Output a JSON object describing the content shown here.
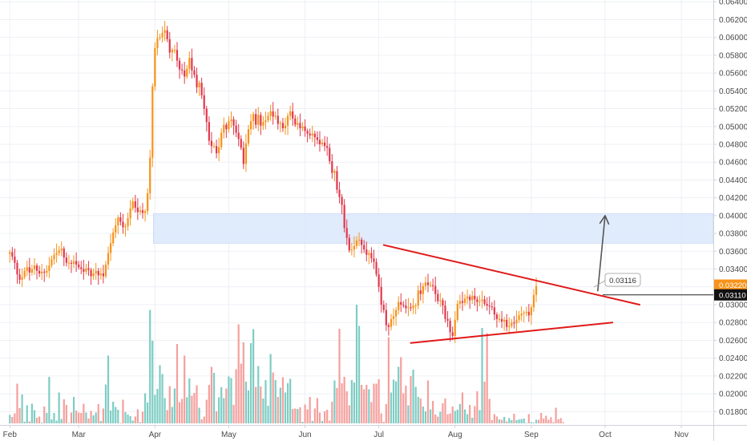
{
  "chart_data": {
    "type": "candlestick",
    "title": "",
    "xlabel": "",
    "ylabel": "",
    "ylim": [
      0.0165,
      0.0642
    ],
    "grid": true,
    "legend": "none",
    "y_ticks": [
      "0.01800",
      "0.02000",
      "0.02200",
      "0.02400",
      "0.02600",
      "0.02800",
      "0.03000",
      "0.03200",
      "0.03400",
      "0.03600",
      "0.03800",
      "0.04000",
      "0.04200",
      "0.04400",
      "0.04600",
      "0.04800",
      "0.05000",
      "0.05200",
      "0.05400",
      "0.05600",
      "0.05800",
      "0.06000",
      "0.06200",
      "0.06400"
    ],
    "x_ticks": [
      {
        "label": "Feb",
        "day": 0
      },
      {
        "label": "Mar",
        "day": 28
      },
      {
        "label": "Apr",
        "day": 59
      },
      {
        "label": "May",
        "day": 89
      },
      {
        "label": "Jun",
        "day": 120
      },
      {
        "label": "Jul",
        "day": 150
      },
      {
        "label": "Aug",
        "day": 181
      },
      {
        "label": "Sep",
        "day": 212
      },
      {
        "label": "Oct",
        "day": 242
      },
      {
        "label": "Nov",
        "day": 273
      }
    ],
    "x_day_range": [
      -4,
      286
    ],
    "price_tags": [
      {
        "label": "0.03220",
        "value": 0.0322,
        "color": "#f7931a"
      },
      {
        "label": "0.03110",
        "value": 0.0311,
        "color": "#111111"
      }
    ],
    "annotation": {
      "label": "0.03116",
      "day": 242,
      "value": 0.0327
    },
    "close_series": [
      0.0359,
      0.0354,
      0.0347,
      0.0334,
      0.0328,
      0.0331,
      0.0338,
      0.0342,
      0.0336,
      0.034,
      0.0344,
      0.0338,
      0.0335,
      0.0337,
      0.0336,
      0.0338,
      0.0344,
      0.0351,
      0.0356,
      0.0358,
      0.0361,
      0.0363,
      0.0353,
      0.0347,
      0.0347,
      0.0346,
      0.0349,
      0.0345,
      0.0342,
      0.034,
      0.0337,
      0.0341,
      0.0339,
      0.0332,
      0.0335,
      0.0338,
      0.0333,
      0.0335,
      0.0332,
      0.0345,
      0.0358,
      0.0369,
      0.0381,
      0.0389,
      0.0398,
      0.0393,
      0.0387,
      0.0388,
      0.0397,
      0.0408,
      0.0416,
      0.0409,
      0.0404,
      0.0406,
      0.0403,
      0.0405,
      0.0425,
      0.0465,
      0.0545,
      0.0588,
      0.0599,
      0.06,
      0.0605,
      0.0608,
      0.0598,
      0.0583,
      0.0586,
      0.0586,
      0.0574,
      0.0564,
      0.0563,
      0.0556,
      0.0565,
      0.0577,
      0.0563,
      0.0558,
      0.0544,
      0.0549,
      0.0535,
      0.052,
      0.0505,
      0.0484,
      0.0478,
      0.0478,
      0.047,
      0.0477,
      0.0493,
      0.0502,
      0.0497,
      0.0506,
      0.0508,
      0.0501,
      0.0493,
      0.0486,
      0.0476,
      0.0458,
      0.0481,
      0.0497,
      0.0506,
      0.0514,
      0.0502,
      0.0513,
      0.0501,
      0.0505,
      0.0507,
      0.0512,
      0.0517,
      0.0511,
      0.0512,
      0.0503,
      0.0504,
      0.0498,
      0.0501,
      0.0512,
      0.0517,
      0.0509,
      0.0502,
      0.0504,
      0.0498,
      0.05,
      0.0495,
      0.0492,
      0.049,
      0.0492,
      0.0488,
      0.0485,
      0.048,
      0.0482,
      0.0478,
      0.0476,
      0.0461,
      0.0448,
      0.045,
      0.0429,
      0.0421,
      0.0412,
      0.0386,
      0.0375,
      0.0361,
      0.0362,
      0.0366,
      0.0372,
      0.0373,
      0.0367,
      0.0362,
      0.0356,
      0.0358,
      0.0352,
      0.0348,
      0.0334,
      0.032,
      0.03,
      0.0294,
      0.0277,
      0.0275,
      0.0284,
      0.0287,
      0.0294,
      0.0303,
      0.03,
      0.0299,
      0.0296,
      0.0297,
      0.0296,
      0.0299,
      0.0299,
      0.0316,
      0.0312,
      0.0321,
      0.0325,
      0.0322,
      0.0322,
      0.0321,
      0.0312,
      0.0304,
      0.0305,
      0.0299,
      0.0284,
      0.0282,
      0.0269,
      0.0265,
      0.0283,
      0.0301,
      0.0304,
      0.0302,
      0.0307,
      0.0309,
      0.0305,
      0.031,
      0.0306,
      0.0303,
      0.0304,
      0.0306,
      0.0301,
      0.0299,
      0.0298,
      0.0297,
      0.0289,
      0.0284,
      0.0284,
      0.0281,
      0.0283,
      0.0275,
      0.0276,
      0.028,
      0.0279,
      0.0283,
      0.0288,
      0.029,
      0.0291,
      0.0292,
      0.0288,
      0.0297,
      0.0311,
      0.0321
    ],
    "volume_max": 0.3,
    "volume_series": [
      0.021,
      0.016,
      0.025,
      0.099,
      0.038,
      0.072,
      0.004,
      0.045,
      0.005,
      0.049,
      0.033,
      0.014,
      0.017,
      0.002,
      0.042,
      0.026,
      0.116,
      0.01,
      0.026,
      0.007,
      0.077,
      0.011,
      0.06,
      0.046,
      0.001,
      0.027,
      0.066,
      0.032,
      0.027,
      0.026,
      0.049,
      0.027,
      0.012,
      0.031,
      0.02,
      0.027,
      0.048,
      0.006,
      0.037,
      0.097,
      0.169,
      0.032,
      0.054,
      0.041,
      0.034,
      0.001,
      0.059,
      0.028,
      0.022,
      0.018,
      0.007,
      0.017,
      0.035,
      0.003,
      0.029,
      0.075,
      0.052,
      0.283,
      0.206,
      0.071,
      0.086,
      0.145,
      0.123,
      0.063,
      0.033,
      0.093,
      0.041,
      0.087,
      0.198,
      0.053,
      0.061,
      0.169,
      0.065,
      0.112,
      0.069,
      0.076,
      0.095,
      0.039,
      0.01,
      0.017,
      0.059,
      0.096,
      0.141,
      0.126,
      0.03,
      0.065,
      0.09,
      0.063,
      0.087,
      0.117,
      0.113,
      0.046,
      0.135,
      0.247,
      0.149,
      0.202,
      0.104,
      0.082,
      0.2,
      0.235,
      0.091,
      0.143,
      0.092,
      0.062,
      0.108,
      0.044,
      0.173,
      0.127,
      0.108,
      0.066,
      0.089,
      0.115,
      0.077,
      0.1,
      0.111,
      0.036,
      0.037,
      0.036,
      0.04,
      0.004,
      0.047,
      0.035,
      0.066,
      0.006,
      0.037,
      0.063,
      0.027,
      0.006,
      0.03,
      0.034,
      0.007,
      0.054,
      0.107,
      0.088,
      0.236,
      0.1,
      0.116,
      0.08,
      0.045,
      0.108,
      0.102,
      0.296,
      0.243,
      0.096,
      0.085,
      0.096,
      0.085,
      0.053,
      0.099,
      0.099,
      0.11,
      0.025,
      0.004,
      0.048,
      0.215,
      0.077,
      0.109,
      0.105,
      0.141,
      0.165,
      0.075,
      0.094,
      0.045,
      0.118,
      0.134,
      0.091,
      0.066,
      0.062,
      0.042,
      0.03,
      0.107,
      0.035,
      0.056,
      0.022,
      0.017,
      0.029,
      0.05,
      0.062,
      0.023,
      0.025,
      0.042,
      0.031,
      0.034,
      0.048,
      0.077,
      0.035,
      0.023,
      0.046,
      0.014,
      0.043,
      0.08,
      0.033,
      0.238,
      0.104,
      0.225,
      0.061,
      0.008,
      0.023,
      0.017,
      0.01,
      0.009,
      0.016,
      0.005,
      0.013,
      0.008,
      0.024,
      0.008,
      0.01,
      0.011,
      0.012,
      0.001,
      0.023,
      0.003,
      0.002,
      0.009,
      0.009,
      0.026,
      0.012,
      0.019,
      0.009,
      0.015,
      0.003,
      0.039,
      0.01,
      0.013,
      0.003
    ],
    "support_zone": {
      "y_low": 0.0369,
      "y_high": 0.0402,
      "day_start": 59
    },
    "trendlines": [
      {
        "name": "upper",
        "from": {
          "day": 152,
          "value": 0.0367
        },
        "to": {
          "day": 256,
          "value": 0.03
        }
      },
      {
        "name": "lower",
        "from": {
          "day": 163,
          "value": 0.0257
        },
        "to": {
          "day": 245,
          "value": 0.028
        }
      }
    ],
    "horizontal_line": {
      "value": 0.0311,
      "day_start": 241
    },
    "arrow": {
      "from": {
        "day": 239,
        "value": 0.0315
      },
      "to": {
        "day": 242,
        "value": 0.04
      }
    },
    "colors": {
      "up": "#f7931a",
      "down": "#e0384c",
      "volume_up": "#7ecdc4",
      "volume_down": "#f5a09d",
      "grid": "#eef0f5",
      "zone": "#dbe7fb",
      "trendline": "#e01919",
      "arrow": "#555555",
      "axis": "#d0d3da"
    }
  }
}
